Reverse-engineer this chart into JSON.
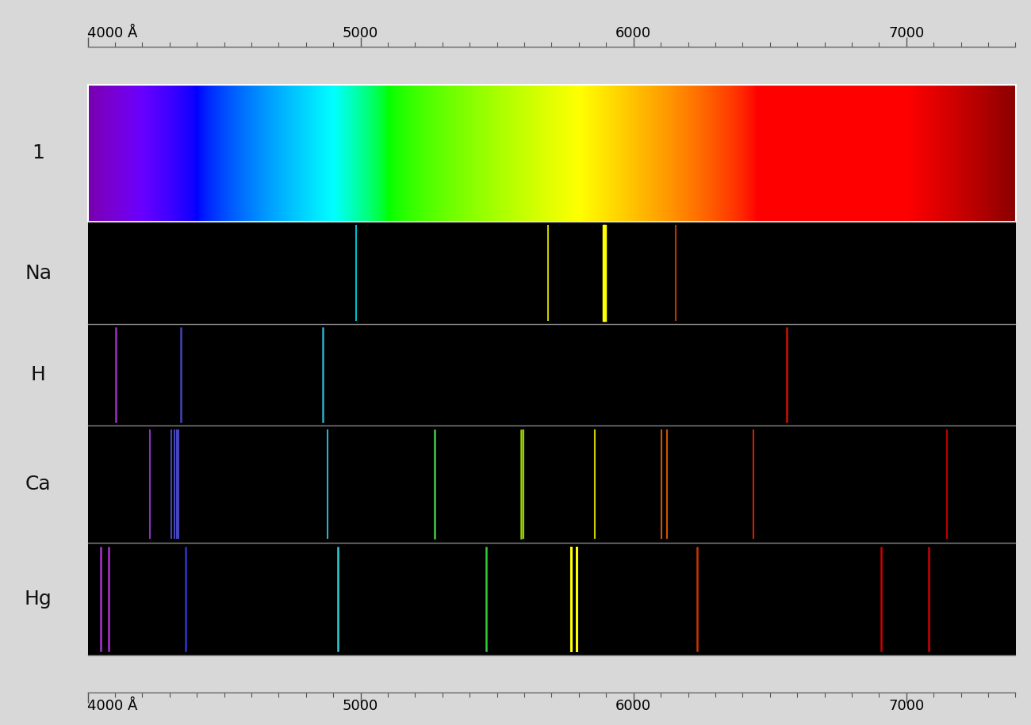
{
  "wavelength_min": 4000,
  "wavelength_max": 7400,
  "major_ticks": [
    4000,
    5000,
    6000,
    7000
  ],
  "tick_labels": {
    "4000": "4000 Å",
    "5000": "5000",
    "6000": "6000",
    "7000": "7000"
  },
  "fig_bg": "#d8d8d8",
  "panel_bg": "#000000",
  "border_color": "#aaaaaa",
  "label_fontsize": 18,
  "label_color": "#111111",
  "panel_order": [
    "1",
    "Na",
    "H",
    "Ca",
    "Hg"
  ],
  "panel_rel_heights": [
    1.35,
    1.0,
    1.0,
    1.15,
    1.1
  ],
  "spectra": {
    "Na": [
      {
        "wl": 4983,
        "color": "#00bbcc",
        "lw": 1.5
      },
      {
        "wl": 5688,
        "color": "#cccc00",
        "lw": 1.5
      },
      {
        "wl": 5890,
        "color": "#ffff00",
        "lw": 2.5
      },
      {
        "wl": 5896,
        "color": "#ffff00",
        "lw": 2.5
      },
      {
        "wl": 6154,
        "color": "#bb3300",
        "lw": 1.5
      }
    ],
    "H": [
      {
        "wl": 4102,
        "color": "#9933bb",
        "lw": 1.8
      },
      {
        "wl": 4340,
        "color": "#4444bb",
        "lw": 1.8
      },
      {
        "wl": 4861,
        "color": "#33aacc",
        "lw": 1.8
      },
      {
        "wl": 6563,
        "color": "#cc1100",
        "lw": 1.8
      }
    ],
    "Ca": [
      {
        "wl": 4227,
        "color": "#8833bb",
        "lw": 1.5
      },
      {
        "wl": 4307,
        "color": "#4444bb",
        "lw": 1.5
      },
      {
        "wl": 4318,
        "color": "#4444bb",
        "lw": 1.5
      },
      {
        "wl": 4326,
        "color": "#4444bb",
        "lw": 1.5
      },
      {
        "wl": 4334,
        "color": "#4444bb",
        "lw": 1.5
      },
      {
        "wl": 4878,
        "color": "#33aacc",
        "lw": 1.5
      },
      {
        "wl": 5270,
        "color": "#44cc44",
        "lw": 1.8
      },
      {
        "wl": 5588,
        "color": "#99cc00",
        "lw": 1.8
      },
      {
        "wl": 5598,
        "color": "#99cc00",
        "lw": 1.5
      },
      {
        "wl": 5857,
        "color": "#cccc00",
        "lw": 1.5
      },
      {
        "wl": 6103,
        "color": "#cc5500",
        "lw": 1.5
      },
      {
        "wl": 6122,
        "color": "#cc5500",
        "lw": 1.5
      },
      {
        "wl": 6439,
        "color": "#cc2200",
        "lw": 1.5
      },
      {
        "wl": 7148,
        "color": "#bb0000",
        "lw": 1.5
      }
    ],
    "Hg": [
      {
        "wl": 4047,
        "color": "#aa33cc",
        "lw": 1.8
      },
      {
        "wl": 4078,
        "color": "#aa33cc",
        "lw": 1.8
      },
      {
        "wl": 4358,
        "color": "#3333cc",
        "lw": 1.8
      },
      {
        "wl": 4916,
        "color": "#33cccc",
        "lw": 1.8
      },
      {
        "wl": 5461,
        "color": "#33cc33",
        "lw": 1.8
      },
      {
        "wl": 5770,
        "color": "#ffff00",
        "lw": 2.2
      },
      {
        "wl": 5791,
        "color": "#ffff00",
        "lw": 2.2
      },
      {
        "wl": 6234,
        "color": "#cc3300",
        "lw": 1.8
      },
      {
        "wl": 6907,
        "color": "#cc0000",
        "lw": 1.8
      },
      {
        "wl": 7081,
        "color": "#cc0000",
        "lw": 1.8
      }
    ]
  }
}
